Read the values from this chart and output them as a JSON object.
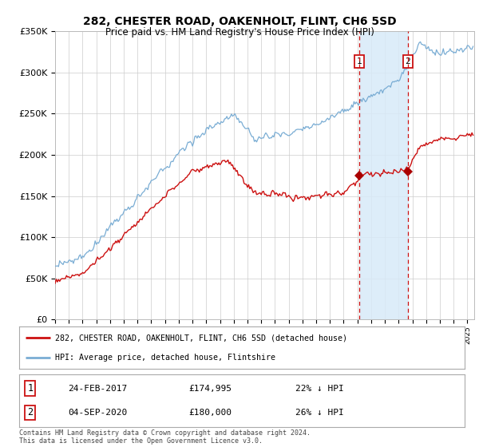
{
  "title": "282, CHESTER ROAD, OAKENHOLT, FLINT, CH6 5SD",
  "subtitle": "Price paid vs. HM Land Registry's House Price Index (HPI)",
  "legend_line1": "282, CHESTER ROAD, OAKENHOLT, FLINT, CH6 5SD (detached house)",
  "legend_line2": "HPI: Average price, detached house, Flintshire",
  "footer": "Contains HM Land Registry data © Crown copyright and database right 2024.\nThis data is licensed under the Open Government Licence v3.0.",
  "table_rows": [
    {
      "num": "1",
      "date": "24-FEB-2017",
      "price": "£174,995",
      "note": "22% ↓ HPI"
    },
    {
      "num": "2",
      "date": "04-SEP-2020",
      "price": "£180,000",
      "note": "26% ↓ HPI"
    }
  ],
  "marker1_date": 2017.14,
  "marker2_date": 2020.67,
  "marker1_price": 174995,
  "marker2_price": 180000,
  "hpi_color": "#7aadd4",
  "price_color": "#cc1111",
  "marker_color": "#aa0000",
  "vline_color": "#cc1111",
  "shade_color": "#d8eaf8",
  "ylim_min": 0,
  "ylim_max": 350000,
  "background_color": "#ffffff",
  "grid_color": "#cccccc"
}
